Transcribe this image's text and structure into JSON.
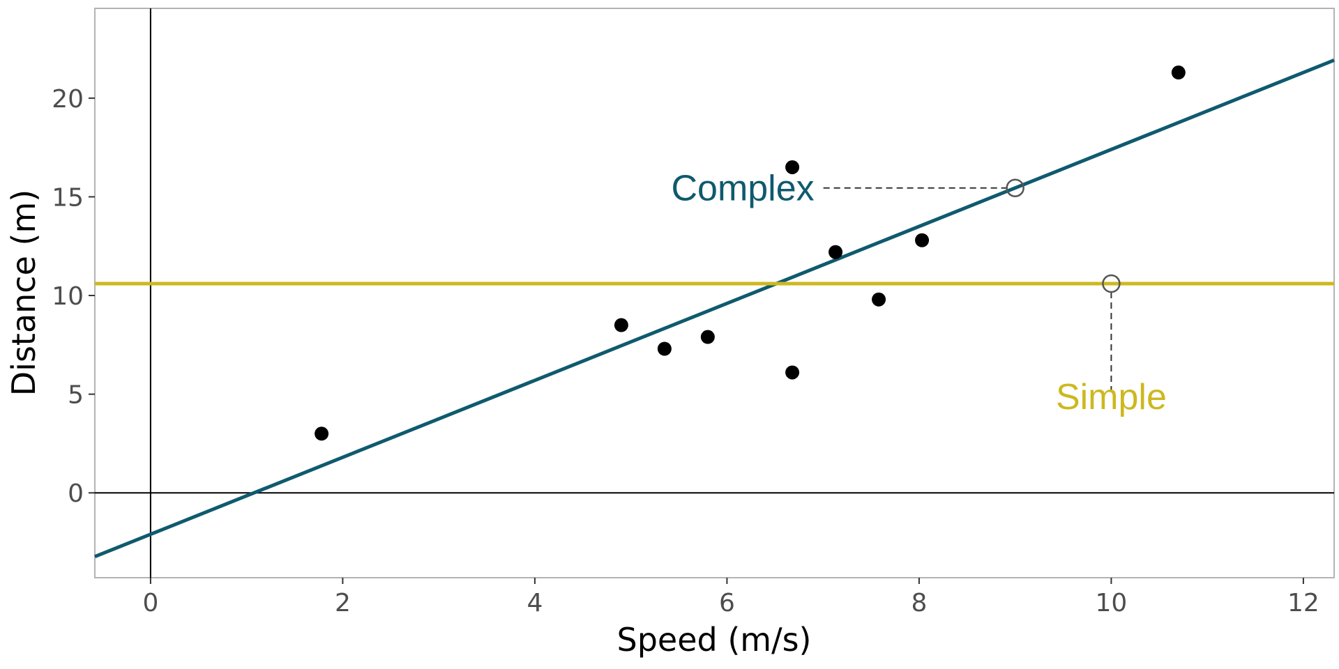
{
  "chart_data": {
    "type": "scatter",
    "xlabel": "Speed (m/s)",
    "ylabel": "Distance (m)",
    "xlim": [
      -0.58,
      12.32
    ],
    "ylim": [
      -4.3,
      24.55
    ],
    "x_ticks": [
      0,
      2,
      4,
      6,
      8,
      10,
      12
    ],
    "y_ticks": [
      0,
      5,
      10,
      15,
      20
    ],
    "grid": false,
    "reference_lines": {
      "x": 0,
      "y": 0,
      "color": "#000000"
    },
    "series": [
      {
        "points": [
          {
            "x": 1.78,
            "y": 3.0
          },
          {
            "x": 4.9,
            "y": 8.5
          },
          {
            "x": 5.35,
            "y": 7.3
          },
          {
            "x": 5.8,
            "y": 7.9
          },
          {
            "x": 6.68,
            "y": 16.5
          },
          {
            "x": 6.68,
            "y": 6.1
          },
          {
            "x": 7.13,
            "y": 12.2
          },
          {
            "x": 7.58,
            "y": 9.8
          },
          {
            "x": 8.03,
            "y": 12.8
          },
          {
            "x": 10.7,
            "y": 21.3
          }
        ],
        "color": "#000000"
      }
    ],
    "models": [
      {
        "label": "Complex",
        "kind": "linear",
        "intercept": -2.1,
        "slope": 1.95,
        "color": "#0f5a6e",
        "highlight_point": {
          "x": 9.0,
          "y": 15.45
        }
      },
      {
        "label": "Simple",
        "kind": "constant",
        "value": 10.6,
        "color": "#cdb81e",
        "highlight_point": {
          "x": 10.0,
          "y": 10.6
        }
      }
    ]
  }
}
